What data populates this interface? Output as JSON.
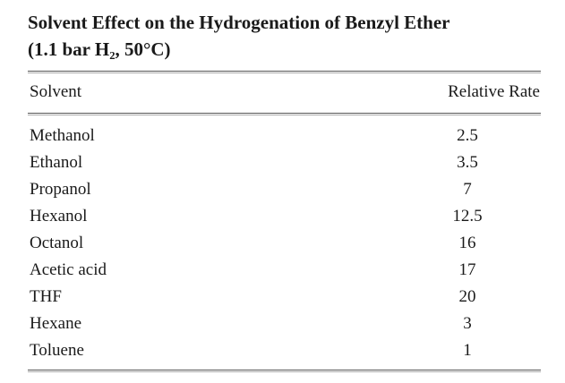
{
  "table": {
    "title": "Solvent Effect on the Hydrogenation of Benzyl Ether",
    "subtitle": "(1.1 bar H₂, 50°C)",
    "columns": [
      "Solvent",
      "Relative Rate"
    ],
    "rows": [
      [
        "Methanol",
        2.5
      ],
      [
        "Ethanol",
        3.5
      ],
      [
        "Propanol",
        7
      ],
      [
        "Hexanol",
        12.5
      ],
      [
        "Octanol",
        16
      ],
      [
        "Acetic acid",
        17
      ],
      [
        "THF",
        20
      ],
      [
        "Hexane",
        3
      ],
      [
        "Toluene",
        1
      ]
    ]
  }
}
